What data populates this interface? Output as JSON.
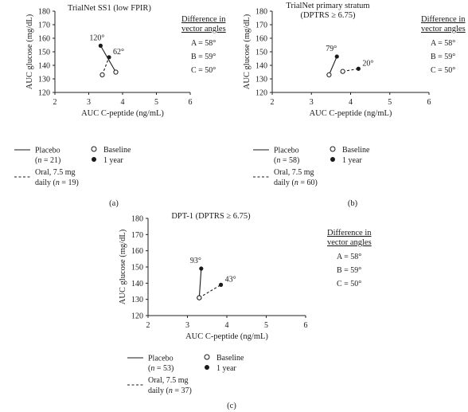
{
  "chart_data": [
    {
      "type": "scatter",
      "panel": "(a)",
      "title": "TrialNet SS1 (low FPIR)",
      "title2": "",
      "xlabel": "AUC C-peptide (ng/mL)",
      "ylabel": "AUC glucose (mg/dL)",
      "xlim": [
        2,
        6
      ],
      "ylim": [
        120,
        180
      ],
      "x_ticks": [
        "2",
        "3",
        "4",
        "5",
        "6"
      ],
      "y_ticks": [
        "120",
        "130",
        "140",
        "150",
        "160",
        "170",
        "180"
      ],
      "series": [
        {
          "name": "Placebo",
          "n": "(n = 21)",
          "style": "solid",
          "baseline": [
            3.8,
            135
          ],
          "one_year": [
            3.35,
            154.5
          ],
          "angle": "120°"
        },
        {
          "name": "Oral, 7.5 mg",
          "name2": "daily",
          "n": "(n = 19)",
          "style": "dashed",
          "baseline": [
            3.4,
            133
          ],
          "one_year": [
            3.6,
            146
          ],
          "angle": "62°"
        }
      ],
      "legend": {
        "baseline": "Baseline",
        "one_year": "1 year"
      },
      "difference": {
        "title1": "Difference in",
        "title2": "vector angles",
        "items": [
          "A = 58°",
          "B = 59°",
          "C = 50°"
        ]
      }
    },
    {
      "type": "scatter",
      "panel": "(b)",
      "title": "TrialNet primary stratum",
      "title2": "(DPTRS ≥ 6.75)",
      "xlabel": "AUC C-peptide (ng/mL)",
      "ylabel": "AUC glucose (mg/dL)",
      "xlim": [
        2,
        6
      ],
      "ylim": [
        120,
        180
      ],
      "x_ticks": [
        "2",
        "3",
        "4",
        "5",
        "6"
      ],
      "y_ticks": [
        "120",
        "130",
        "140",
        "150",
        "160",
        "170",
        "180"
      ],
      "series": [
        {
          "name": "Placebo",
          "n": "(n = 58)",
          "style": "solid",
          "baseline": [
            3.45,
            133
          ],
          "one_year": [
            3.65,
            146.5
          ],
          "angle": "79°"
        },
        {
          "name": "Oral, 7.5 mg",
          "name2": "daily",
          "n": "(n = 60)",
          "style": "dashed",
          "baseline": [
            3.8,
            135.5
          ],
          "one_year": [
            4.2,
            137.5
          ],
          "angle": "20°"
        }
      ],
      "legend": {
        "baseline": "Baseline",
        "one_year": "1 year"
      },
      "difference": {
        "title1": "Difference in",
        "title2": "vector angles",
        "items": [
          "A = 58°",
          "B = 59°",
          "C = 50°"
        ]
      }
    },
    {
      "type": "scatter",
      "panel": "(c)",
      "title": "DPT-1 (DPTRS ≥ 6.75)",
      "title2": "",
      "xlabel": "AUC C-peptide (ng/mL)",
      "ylabel": "AUC glucose (mg/dL)",
      "xlim": [
        2,
        6
      ],
      "ylim": [
        120,
        180
      ],
      "x_ticks": [
        "2",
        "3",
        "4",
        "5",
        "6"
      ],
      "y_ticks": [
        "120",
        "130",
        "140",
        "150",
        "160",
        "170",
        "180"
      ],
      "series": [
        {
          "name": "Placebo",
          "n": "(n = 53)",
          "style": "solid",
          "baseline": [
            3.3,
            131
          ],
          "one_year": [
            3.35,
            149
          ],
          "angle": "93°"
        },
        {
          "name": "Oral, 7.5 mg",
          "name2": "daily",
          "n": "(n = 37)",
          "style": "dashed",
          "baseline": [
            3.3,
            131
          ],
          "one_year": [
            3.85,
            139
          ],
          "angle": "43°"
        }
      ],
      "legend": {
        "baseline": "Baseline",
        "one_year": "1 year"
      },
      "difference": {
        "title1": "Difference in",
        "title2": "vector angles",
        "items": [
          "A = 58°",
          "B = 59°",
          "C = 50°"
        ]
      }
    }
  ]
}
